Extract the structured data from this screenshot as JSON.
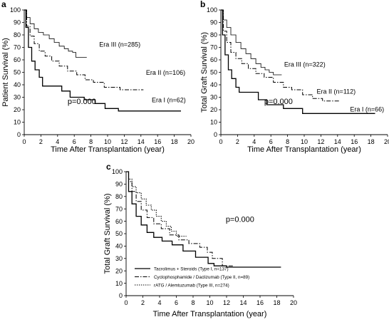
{
  "chart_data": [
    {
      "type": "line",
      "panel_label": "a",
      "ylabel": "Patient Survival (%)",
      "xlabel": "Time After Transplantation (year)",
      "xlim": [
        0,
        20
      ],
      "ylim": [
        0,
        100
      ],
      "x_ticks": [
        "0",
        "2",
        "4",
        "6",
        "8",
        "10",
        "12",
        "14",
        "16",
        "18",
        "20"
      ],
      "y_ticks": [
        "0",
        "10",
        "20",
        "30",
        "40",
        "50",
        "60",
        "70",
        "80",
        "90",
        "100"
      ],
      "annotation": "p=0.000",
      "series": [
        {
          "name": "Era III (n=285)",
          "dash": "solid-thin",
          "x": [
            0,
            0.3,
            0.7,
            1.2,
            1.7,
            2.3,
            3.0,
            3.6,
            4.2,
            4.8,
            5.3,
            5.8,
            6.2,
            7.5
          ],
          "y": [
            100,
            94,
            89,
            85,
            82,
            80,
            77,
            74,
            71,
            69,
            67,
            66,
            62,
            62
          ]
        },
        {
          "name": "Era II (n=106)",
          "dash": "dashdot",
          "x": [
            0,
            0.3,
            0.7,
            1.2,
            1.8,
            2.5,
            3.3,
            4.2,
            5.2,
            6.3,
            7.3,
            8.3,
            9.6,
            11.5,
            13.0,
            14.3
          ],
          "y": [
            100,
            87,
            79,
            73,
            67,
            63,
            59,
            55,
            51,
            48,
            44,
            42,
            38,
            36,
            36,
            36
          ]
        },
        {
          "name": "Era I (n=62)",
          "dash": "solid",
          "x": [
            0,
            0.2,
            0.5,
            0.9,
            1.3,
            1.8,
            2.2,
            4.0,
            4.5,
            5.5,
            7.2,
            8.5,
            9.7,
            11.3,
            18.8
          ],
          "y": [
            100,
            86,
            70,
            59,
            52,
            46,
            39,
            39,
            35,
            30,
            28,
            25,
            21,
            19,
            19
          ]
        }
      ]
    },
    {
      "type": "line",
      "panel_label": "b",
      "ylabel": "Total Graft Survival (%)",
      "xlabel": "Time After Transplantation (year)",
      "xlim": [
        0,
        20
      ],
      "ylim": [
        0,
        100
      ],
      "x_ticks": [
        "0",
        "2",
        "4",
        "6",
        "8",
        "10",
        "12",
        "14",
        "16",
        "18",
        "20"
      ],
      "y_ticks": [
        "0",
        "10",
        "20",
        "30",
        "40",
        "50",
        "60",
        "70",
        "80",
        "90",
        "100"
      ],
      "annotation": "p=0.000",
      "series": [
        {
          "name": "Era III (n=322)",
          "dash": "solid-thin",
          "x": [
            0,
            0.3,
            0.7,
            1.2,
            1.8,
            2.4,
            3.0,
            3.6,
            4.2,
            4.8,
            5.3,
            5.8,
            6.3,
            7.3
          ],
          "y": [
            100,
            92,
            86,
            80,
            74,
            69,
            65,
            61,
            57,
            54,
            52,
            50,
            48,
            48
          ]
        },
        {
          "name": "Era II (n=112)",
          "dash": "dashdot",
          "x": [
            0,
            0.3,
            0.7,
            1.2,
            1.8,
            2.5,
            3.3,
            4.2,
            5.2,
            6.3,
            7.5,
            8.5,
            9.8,
            11.0,
            12.2,
            14.2
          ],
          "y": [
            100,
            83,
            74,
            66,
            61,
            57,
            53,
            49,
            46,
            42,
            38,
            36,
            32,
            29,
            27,
            27
          ]
        },
        {
          "name": "Era I (n=66)",
          "dash": "solid",
          "x": [
            0,
            0.2,
            0.5,
            0.9,
            1.3,
            1.8,
            2.2,
            4.0,
            4.5,
            5.5,
            7.5,
            9.8,
            18.5
          ],
          "y": [
            100,
            80,
            64,
            52,
            45,
            38,
            34,
            34,
            28,
            24,
            21,
            17,
            17
          ]
        }
      ]
    },
    {
      "type": "line",
      "panel_label": "c",
      "ylabel": "Total Graft Survival (%)",
      "xlabel": "Time After Transplantation (year)",
      "xlim": [
        0,
        20
      ],
      "ylim": [
        0,
        100
      ],
      "x_ticks": [
        "0",
        "2",
        "4",
        "6",
        "8",
        "10",
        "12",
        "14",
        "16",
        "18",
        "20"
      ],
      "y_ticks": [
        "0",
        "10",
        "20",
        "30",
        "40",
        "50",
        "60",
        "70",
        "80",
        "90",
        "100"
      ],
      "annotation": "p=0.000",
      "legend_position": "bottom-left",
      "series": [
        {
          "name": "Tacrolimus + Steroids (Type I, n=137)",
          "dash": "solid",
          "x": [
            0,
            0.3,
            0.7,
            1.2,
            1.8,
            2.5,
            3.3,
            4.3,
            5.5,
            6.8,
            8.3,
            9.8,
            10.5,
            12.0,
            14.5,
            18.5
          ],
          "y": [
            100,
            84,
            74,
            64,
            57,
            51,
            47,
            44,
            41,
            36,
            31,
            26,
            24,
            23,
            23,
            23
          ]
        },
        {
          "name": "Cyclophosphamide / Daclizumab (Type II, n=89)",
          "dash": "dashdot",
          "x": [
            0,
            0.3,
            0.7,
            1.2,
            1.8,
            2.5,
            3.3,
            4.2,
            5.2,
            6.3,
            7.5,
            8.8,
            9.7,
            10.3,
            11.5,
            12.8
          ],
          "y": [
            100,
            92,
            84,
            76,
            69,
            63,
            58,
            54,
            49,
            45,
            42,
            39,
            35,
            30,
            24,
            24
          ]
        },
        {
          "name": "rATG / Alemtuzumab (Type III, n=274)",
          "dash": "dotted",
          "x": [
            0,
            0.3,
            0.7,
            1.2,
            1.8,
            2.4,
            3.0,
            3.6,
            4.2,
            4.8,
            5.4,
            6.0,
            7.2
          ],
          "y": [
            100,
            94,
            88,
            83,
            78,
            73,
            69,
            64,
            60,
            56,
            52,
            48,
            48
          ]
        }
      ]
    }
  ]
}
